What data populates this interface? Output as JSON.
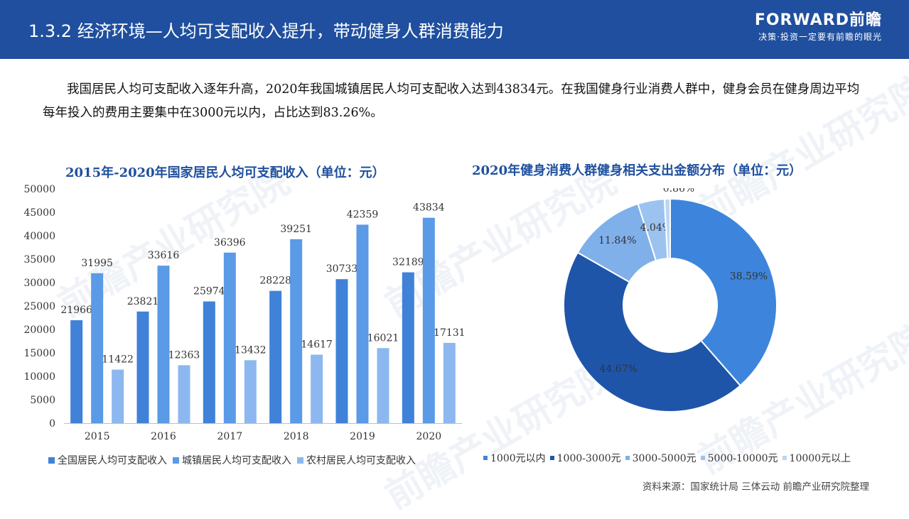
{
  "header": {
    "title": "1.3.2 经济环境—人均可支配收入提升，带动健身人群消费能力",
    "brand": "FORWARD前瞻",
    "slogan": "决策·投资一定要有前瞻的眼光"
  },
  "intro": "我国居民人均可支配收入逐年升高，2020年我国城镇居民人均可支配收入达到43834元。在我国健身行业消费人群中，健身会员在健身周边平均每年投入的费用主要集中在3000元以内，占比达到83.26%。",
  "watermark": "前瞻产业研究院",
  "source": "资料来源：国家统计局 三体云动 前瞻产业研究院整理",
  "colors": {
    "header_bg": "#1f4f9e",
    "bar_national": "#3f82d8",
    "bar_urban": "#5b9ae6",
    "bar_rural": "#8db8ef"
  },
  "chart_data": [
    {
      "type": "bar",
      "title": "2015年-2020年国家居民人均可支配收入（单位：元）",
      "categories": [
        "2015",
        "2016",
        "2017",
        "2018",
        "2019",
        "2020"
      ],
      "series": [
        {
          "name": "全国居民人均可支配收入",
          "values": [
            21966,
            23821,
            25974,
            28228,
            30733,
            32189
          ],
          "color": "#3f82d8"
        },
        {
          "name": "城镇居民人均可支配收入",
          "values": [
            31995,
            33616,
            36396,
            39251,
            42359,
            43834
          ],
          "color": "#5b9ae6"
        },
        {
          "name": "农村居民人均可支配收入",
          "values": [
            11422,
            12363,
            13432,
            14617,
            16021,
            17131
          ],
          "color": "#8db8ef"
        }
      ],
      "ylim": [
        0,
        50000
      ],
      "yticks": [
        "0",
        "5000",
        "10000",
        "15000",
        "20000",
        "25000",
        "30000",
        "35000",
        "40000",
        "45000",
        "50000"
      ],
      "legend_position": "bottom",
      "grid": false
    },
    {
      "type": "pie",
      "title": "2020年健身消费人群健身相关支出金额分布（单位：元）",
      "categories": [
        "1000元以内",
        "1000-3000元",
        "3000-5000元",
        "5000-10000元",
        "10000元以上"
      ],
      "values": [
        38.59,
        44.67,
        11.84,
        4.04,
        0.86
      ],
      "labels": [
        "38.59%",
        "44.67%",
        "11.84%",
        "4.04%",
        "0.86%"
      ],
      "colors": [
        "#3d85dc",
        "#1f55a8",
        "#7fb0ea",
        "#9cc3f0",
        "#bcd6f5"
      ],
      "donut": true,
      "legend_position": "bottom"
    }
  ]
}
